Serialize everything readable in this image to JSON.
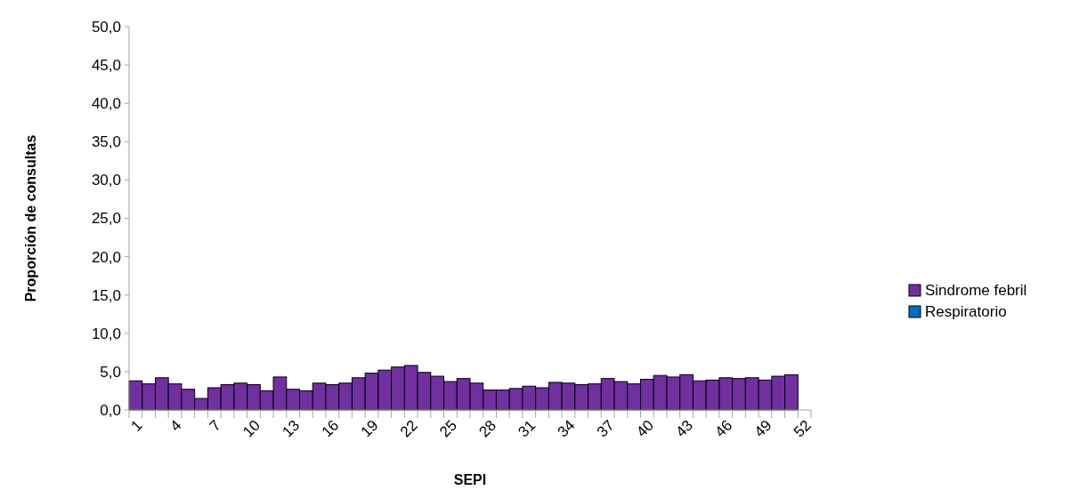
{
  "chart_data": {
    "type": "bar",
    "xlabel": "SEPI",
    "ylabel": "Proporción de consultas",
    "categories": [
      "1",
      null,
      null,
      "4",
      null,
      null,
      "7",
      null,
      null,
      "10",
      null,
      null,
      "13",
      null,
      null,
      "16",
      null,
      null,
      "19",
      null,
      null,
      "22",
      null,
      null,
      "25",
      null,
      null,
      "28",
      null,
      null,
      "31",
      null,
      null,
      "34",
      null,
      null,
      "37",
      null,
      null,
      "40",
      null,
      null,
      "43",
      null,
      null,
      "46",
      null,
      null,
      "49",
      null,
      null,
      "52"
    ],
    "series": [
      {
        "name": "Sindrome febril",
        "color": "#7030a0",
        "values": [
          3.8,
          3.4,
          4.2,
          3.4,
          2.7,
          1.5,
          2.9,
          3.3,
          3.5,
          3.3,
          2.5,
          4.3,
          2.7,
          2.5,
          3.5,
          3.3,
          3.5,
          4.2,
          4.8,
          5.2,
          5.6,
          5.8,
          4.9,
          4.4,
          3.7,
          4.1,
          3.5,
          2.6,
          2.6,
          2.8,
          3.1,
          2.9,
          3.6,
          3.5,
          3.3,
          3.4,
          4.1,
          3.7,
          3.4,
          4.0,
          4.5,
          4.3,
          4.6,
          3.8,
          3.9,
          4.2,
          4.1,
          4.2,
          3.9,
          4.4,
          4.6,
          null
        ]
      },
      {
        "name": "Respiratorio",
        "color": "#0070c0",
        "values": [
          null,
          null,
          null,
          null,
          null,
          null,
          null,
          null,
          null,
          null,
          null,
          null,
          null,
          null,
          null,
          null,
          null,
          null,
          null,
          null,
          null,
          null,
          null,
          null,
          null,
          null,
          null,
          null,
          null,
          null,
          null,
          null,
          null,
          null,
          null,
          null,
          null,
          null,
          null,
          null,
          null,
          null,
          null,
          null,
          null,
          null,
          null,
          null,
          null,
          null,
          null,
          null
        ]
      }
    ],
    "stacked": true,
    "ylim": [
      0,
      50
    ],
    "yticks": [
      {
        "value": 0,
        "label": "0,0"
      },
      {
        "value": 5,
        "label": "5,0"
      },
      {
        "value": 10,
        "label": "10,0"
      },
      {
        "value": 15,
        "label": "15,0"
      },
      {
        "value": 20,
        "label": "20,0"
      },
      {
        "value": 25,
        "label": "25,0"
      },
      {
        "value": 30,
        "label": "30,0"
      },
      {
        "value": 35,
        "label": "35,0"
      },
      {
        "value": 40,
        "label": "40,0"
      },
      {
        "value": 45,
        "label": "45,0"
      },
      {
        "value": 50,
        "label": "50,0"
      }
    ],
    "grid": false,
    "legend": "right"
  }
}
